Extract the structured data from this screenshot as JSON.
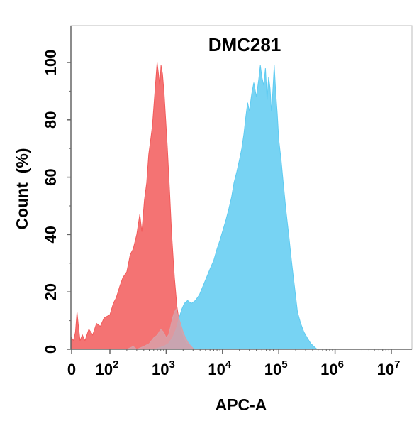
{
  "chart_data": {
    "type": "area",
    "title": "DMC281",
    "xlabel": "APC-A",
    "ylabel": "Count  (%)",
    "x_scale": "biexponential",
    "xlim": [
      0,
      10000000
    ],
    "ylim": [
      0,
      105
    ],
    "y_ticks": [
      0,
      20,
      40,
      60,
      80,
      100
    ],
    "x_ticks": [
      {
        "value": 0,
        "base": "0",
        "exp": ""
      },
      {
        "value": 100,
        "base": "10",
        "exp": "2"
      },
      {
        "value": 1000,
        "base": "10",
        "exp": "3"
      },
      {
        "value": 10000,
        "base": "10",
        "exp": "4"
      },
      {
        "value": 100000,
        "base": "10",
        "exp": "5"
      },
      {
        "value": 1000000,
        "base": "10",
        "exp": "6"
      },
      {
        "value": 10000000,
        "base": "10",
        "exp": "7"
      }
    ],
    "series": [
      {
        "color": "#f25b5b",
        "points": [
          [
            0,
            4
          ],
          [
            5,
            3
          ],
          [
            10,
            6
          ],
          [
            14,
            13
          ],
          [
            17,
            9
          ],
          [
            22,
            3
          ],
          [
            28,
            5
          ],
          [
            35,
            3
          ],
          [
            45,
            7
          ],
          [
            55,
            5
          ],
          [
            65,
            9
          ],
          [
            75,
            8
          ],
          [
            85,
            11
          ],
          [
            100,
            12
          ],
          [
            115,
            16
          ],
          [
            130,
            18
          ],
          [
            150,
            22
          ],
          [
            170,
            25
          ],
          [
            200,
            27
          ],
          [
            230,
            33
          ],
          [
            260,
            35
          ],
          [
            300,
            40
          ],
          [
            340,
            47
          ],
          [
            370,
            41
          ],
          [
            410,
            52
          ],
          [
            450,
            58
          ],
          [
            490,
            68
          ],
          [
            530,
            73
          ],
          [
            570,
            78
          ],
          [
            610,
            86
          ],
          [
            650,
            93
          ],
          [
            690,
            100
          ],
          [
            730,
            96
          ],
          [
            770,
            92
          ],
          [
            810,
            99
          ],
          [
            860,
            96
          ],
          [
            920,
            89
          ],
          [
            980,
            80
          ],
          [
            1050,
            70
          ],
          [
            1150,
            55
          ],
          [
            1250,
            40
          ],
          [
            1400,
            25
          ],
          [
            1550,
            15
          ],
          [
            1750,
            8
          ],
          [
            2000,
            4
          ],
          [
            2300,
            2
          ],
          [
            2700,
            1
          ],
          [
            3200,
            0
          ]
        ]
      },
      {
        "color": "#5fcbf1",
        "points": [
          [
            0,
            0
          ],
          [
            600,
            0
          ],
          [
            900,
            1
          ],
          [
            1100,
            2
          ],
          [
            1300,
            4
          ],
          [
            1500,
            7
          ],
          [
            1700,
            11
          ],
          [
            1900,
            14
          ],
          [
            2100,
            16
          ],
          [
            2400,
            17
          ],
          [
            2800,
            16
          ],
          [
            3300,
            17
          ],
          [
            3900,
            19
          ],
          [
            4500,
            22
          ],
          [
            5200,
            25
          ],
          [
            6000,
            28
          ],
          [
            7000,
            31
          ],
          [
            8000,
            35
          ],
          [
            9000,
            38
          ],
          [
            10000,
            41
          ],
          [
            11500,
            45
          ],
          [
            13000,
            49
          ],
          [
            14500,
            53
          ],
          [
            16000,
            58
          ],
          [
            18000,
            62
          ],
          [
            20000,
            66
          ],
          [
            22000,
            70
          ],
          [
            24000,
            75
          ],
          [
            26000,
            81
          ],
          [
            28000,
            86
          ],
          [
            30000,
            83
          ],
          [
            33000,
            89
          ],
          [
            36000,
            93
          ],
          [
            40000,
            88
          ],
          [
            44000,
            94
          ],
          [
            47000,
            99
          ],
          [
            50000,
            95
          ],
          [
            54000,
            92
          ],
          [
            58000,
            98
          ],
          [
            62000,
            87
          ],
          [
            66000,
            95
          ],
          [
            70000,
            91
          ],
          [
            74000,
            83
          ],
          [
            78000,
            89
          ],
          [
            83000,
            99
          ],
          [
            88000,
            90
          ],
          [
            94000,
            82
          ],
          [
            100000,
            73
          ],
          [
            110000,
            66
          ],
          [
            120000,
            58
          ],
          [
            135000,
            48
          ],
          [
            150000,
            40
          ],
          [
            170000,
            30
          ],
          [
            190000,
            22
          ],
          [
            215000,
            13
          ],
          [
            245000,
            9
          ],
          [
            280000,
            6
          ],
          [
            320000,
            4
          ],
          [
            370000,
            2
          ],
          [
            420000,
            1
          ],
          [
            480000,
            0
          ]
        ]
      },
      {
        "color": "#d8a0a8",
        "points": [
          [
            0,
            0
          ],
          [
            200,
            0
          ],
          [
            260,
            1
          ],
          [
            300,
            0
          ],
          [
            400,
            1
          ],
          [
            500,
            2
          ],
          [
            600,
            4
          ],
          [
            700,
            5
          ],
          [
            800,
            7
          ],
          [
            900,
            6
          ],
          [
            1000,
            4
          ],
          [
            1100,
            5
          ],
          [
            1200,
            8
          ],
          [
            1300,
            11
          ],
          [
            1400,
            13
          ],
          [
            1500,
            14
          ],
          [
            1600,
            12
          ],
          [
            1800,
            9
          ],
          [
            2000,
            6
          ],
          [
            2200,
            4
          ],
          [
            2500,
            2
          ],
          [
            2800,
            1
          ],
          [
            3100,
            0
          ]
        ]
      }
    ]
  }
}
